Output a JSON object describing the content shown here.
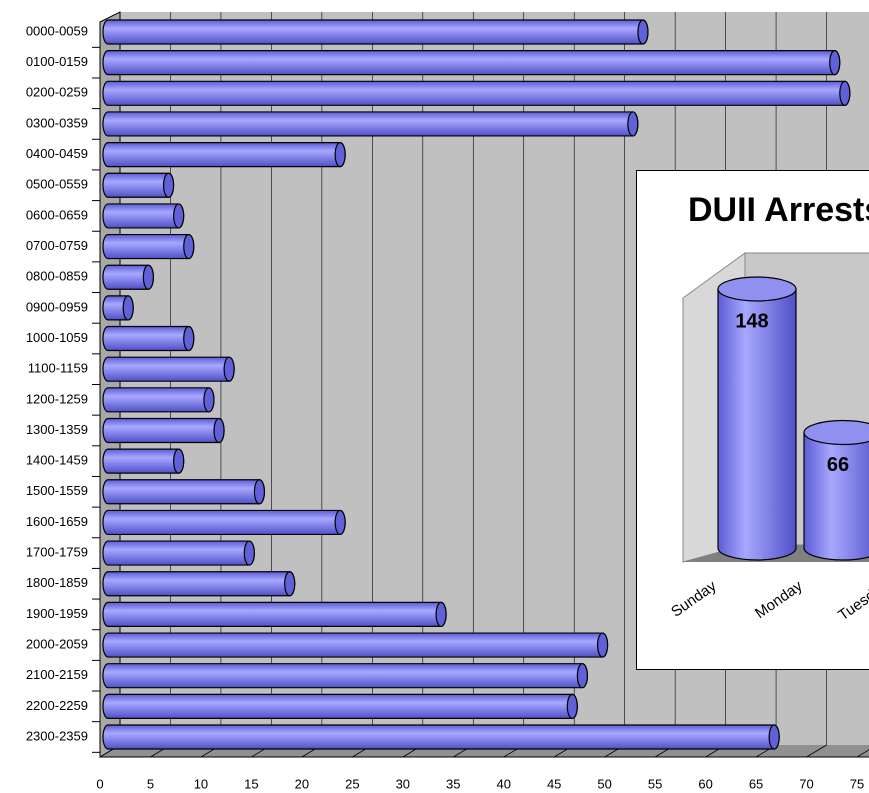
{
  "chart_data": [
    {
      "type": "bar",
      "orientation": "horizontal",
      "color": "#8080ff",
      "categories": [
        "0000-0059",
        "0100-0159",
        "0200-0259",
        "0300-0359",
        "0400-0459",
        "0500-0559",
        "0600-0659",
        "0700-0759",
        "0800-0859",
        "0900-0959",
        "1000-1059",
        "1100-1159",
        "1200-1259",
        "1300-1359",
        "1400-1459",
        "1500-1559",
        "1600-1659",
        "1700-1759",
        "1800-1859",
        "1900-1959",
        "2000-2059",
        "2100-2159",
        "2200-2259",
        "2300-2359"
      ],
      "values": [
        53,
        72,
        73,
        52,
        23,
        6,
        7,
        8,
        4,
        2,
        8,
        12,
        10,
        11,
        7,
        15,
        23,
        14,
        18,
        33,
        49,
        47,
        46,
        66
      ],
      "xlim": [
        0,
        75
      ],
      "xticks": [
        0,
        5,
        10,
        15,
        20,
        25,
        30,
        35,
        40,
        45,
        50,
        55,
        60,
        65,
        70,
        75
      ],
      "grid": true
    },
    {
      "type": "column",
      "title": "DUII Arrests",
      "color": "#8080ff",
      "categories": [
        "Sunday",
        "Monday",
        "Tuesday"
      ],
      "values": [
        148,
        66,
        null
      ],
      "ylim": [
        0,
        160
      ]
    }
  ]
}
